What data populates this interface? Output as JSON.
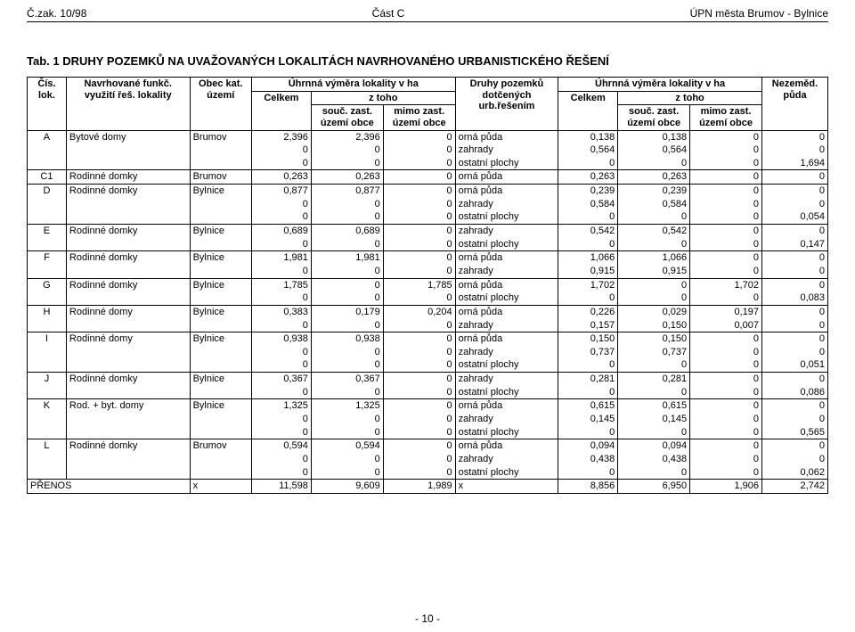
{
  "header": {
    "left": "Č.zak. 10/98",
    "center": "Část C",
    "right": "ÚPN města Brumov - Bylnice"
  },
  "title": "Tab. 1 DRUHY POZEMKŮ NA UVAŽOVANÝCH LOKALITÁCH NAVRHOVANÉHO URBANISTICKÉHO ŘEŠENÍ",
  "columns": {
    "col1": "Čís. lok.",
    "col2": "Navrhované funkč. využití řeš. lokality",
    "col3": "Obec kat. území",
    "group_left": "Úhrnná výměra lokality v ha",
    "celkem": "Celkem",
    "z_toho": "z toho",
    "souc": "souč. zast. území obce",
    "mimo": "mimo zast. území obce",
    "druhy": "Druhy pozemků dotčených urb.řešením",
    "group_right": "Úhrnná výměra lokality v ha",
    "nezemed": "Nezeměd. půda"
  },
  "rows": [
    {
      "id": "A",
      "name": "Bytové domy",
      "obec": "Brumov",
      "celkem": "2,396",
      "souc": "2,396",
      "mimo": "0",
      "druh": "orná půda",
      "c2": "0,138",
      "s2": "0,138",
      "m2": "0",
      "nz": "0",
      "firstOfGroup": true
    },
    {
      "id": "",
      "name": "",
      "obec": "",
      "celkem": "0",
      "souc": "0",
      "mimo": "0",
      "druh": "zahrady",
      "c2": "0,564",
      "s2": "0,564",
      "m2": "0",
      "nz": "0"
    },
    {
      "id": "",
      "name": "",
      "obec": "",
      "celkem": "0",
      "souc": "0",
      "mimo": "0",
      "druh": "ostatní plochy",
      "c2": "0",
      "s2": "0",
      "m2": "0",
      "nz": "1,694",
      "lastOfGroup": true
    },
    {
      "id": "C1",
      "name": "Rodinné domky",
      "obec": "Brumov",
      "celkem": "0,263",
      "souc": "0,263",
      "mimo": "0",
      "druh": "orná půda",
      "c2": "0,263",
      "s2": "0,263",
      "m2": "0",
      "nz": "0",
      "firstOfGroup": true,
      "lastOfGroup": true
    },
    {
      "id": "D",
      "name": "Rodinné domky",
      "obec": "Bylnice",
      "celkem": "0,877",
      "souc": "0,877",
      "mimo": "0",
      "druh": "orná půda",
      "c2": "0,239",
      "s2": "0,239",
      "m2": "0",
      "nz": "0",
      "firstOfGroup": true
    },
    {
      "id": "",
      "name": "",
      "obec": "",
      "celkem": "0",
      "souc": "0",
      "mimo": "0",
      "druh": "zahrady",
      "c2": "0,584",
      "s2": "0,584",
      "m2": "0",
      "nz": "0"
    },
    {
      "id": "",
      "name": "",
      "obec": "",
      "celkem": "0",
      "souc": "0",
      "mimo": "0",
      "druh": "ostatní plochy",
      "c2": "0",
      "s2": "0",
      "m2": "0",
      "nz": "0,054",
      "lastOfGroup": true
    },
    {
      "id": "E",
      "name": "Rodinné domky",
      "obec": "Bylnice",
      "celkem": "0,689",
      "souc": "0,689",
      "mimo": "0",
      "druh": "zahrady",
      "c2": "0,542",
      "s2": "0,542",
      "m2": "0",
      "nz": "0",
      "firstOfGroup": true
    },
    {
      "id": "",
      "name": "",
      "obec": "",
      "celkem": "0",
      "souc": "0",
      "mimo": "0",
      "druh": "ostatní plochy",
      "c2": "0",
      "s2": "0",
      "m2": "0",
      "nz": "0,147",
      "lastOfGroup": true
    },
    {
      "id": "F",
      "name": "Rodinné domky",
      "obec": "Bylnice",
      "celkem": "1,981",
      "souc": "1,981",
      "mimo": "0",
      "druh": "orná půda",
      "c2": "1,066",
      "s2": "1,066",
      "m2": "0",
      "nz": "0",
      "firstOfGroup": true
    },
    {
      "id": "",
      "name": "",
      "obec": "",
      "celkem": "0",
      "souc": "0",
      "mimo": "0",
      "druh": "zahrady",
      "c2": "0,915",
      "s2": "0,915",
      "m2": "0",
      "nz": "0",
      "lastOfGroup": true
    },
    {
      "id": "G",
      "name": "Rodinné domky",
      "obec": "Bylnice",
      "celkem": "1,785",
      "souc": "0",
      "mimo": "1,785",
      "druh": "orná půda",
      "c2": "1,702",
      "s2": "0",
      "m2": "1,702",
      "nz": "0",
      "firstOfGroup": true
    },
    {
      "id": "",
      "name": "",
      "obec": "",
      "celkem": "0",
      "souc": "0",
      "mimo": "0",
      "druh": "ostatní plochy",
      "c2": "0",
      "s2": "0",
      "m2": "0",
      "nz": "0,083",
      "lastOfGroup": true
    },
    {
      "id": "H",
      "name": "Rodinné domy",
      "obec": "Bylnice",
      "celkem": "0,383",
      "souc": "0,179",
      "mimo": "0,204",
      "druh": "orná půda",
      "c2": "0,226",
      "s2": "0,029",
      "m2": "0,197",
      "nz": "0",
      "firstOfGroup": true
    },
    {
      "id": "",
      "name": "",
      "obec": "",
      "celkem": "0",
      "souc": "0",
      "mimo": "0",
      "druh": "zahrady",
      "c2": "0,157",
      "s2": "0,150",
      "m2": "0,007",
      "nz": "0",
      "lastOfGroup": true
    },
    {
      "id": "I",
      "name": "Rodinné domy",
      "obec": "Bylnice",
      "celkem": "0,938",
      "souc": "0,938",
      "mimo": "0",
      "druh": "orná půda",
      "c2": "0,150",
      "s2": "0,150",
      "m2": "0",
      "nz": "0",
      "firstOfGroup": true
    },
    {
      "id": "",
      "name": "",
      "obec": "",
      "celkem": "0",
      "souc": "0",
      "mimo": "0",
      "druh": "zahrady",
      "c2": "0,737",
      "s2": "0,737",
      "m2": "0",
      "nz": "0"
    },
    {
      "id": "",
      "name": "",
      "obec": "",
      "celkem": "0",
      "souc": "0",
      "mimo": "0",
      "druh": "ostatní plochy",
      "c2": "0",
      "s2": "0",
      "m2": "0",
      "nz": "0,051",
      "lastOfGroup": true
    },
    {
      "id": "J",
      "name": "Rodinné domky",
      "obec": "Bylnice",
      "celkem": "0,367",
      "souc": "0,367",
      "mimo": "0",
      "druh": "zahrady",
      "c2": "0,281",
      "s2": "0,281",
      "m2": "0",
      "nz": "0",
      "firstOfGroup": true
    },
    {
      "id": "",
      "name": "",
      "obec": "",
      "celkem": "0",
      "souc": "0",
      "mimo": "0",
      "druh": "ostatní plochy",
      "c2": "0",
      "s2": "0",
      "m2": "0",
      "nz": "0,086",
      "lastOfGroup": true
    },
    {
      "id": "K",
      "name": "Rod. + byt. domy",
      "obec": "Bylnice",
      "celkem": "1,325",
      "souc": "1,325",
      "mimo": "0",
      "druh": "orná půda",
      "c2": "0,615",
      "s2": "0,615",
      "m2": "0",
      "nz": "0",
      "firstOfGroup": true
    },
    {
      "id": "",
      "name": "",
      "obec": "",
      "celkem": "0",
      "souc": "0",
      "mimo": "0",
      "druh": "zahrady",
      "c2": "0,145",
      "s2": "0,145",
      "m2": "0",
      "nz": "0"
    },
    {
      "id": "",
      "name": "",
      "obec": "",
      "celkem": "0",
      "souc": "0",
      "mimo": "0",
      "druh": "ostatní plochy",
      "c2": "0",
      "s2": "0",
      "m2": "0",
      "nz": "0,565",
      "lastOfGroup": true
    },
    {
      "id": "L",
      "name": "Rodinné domky",
      "obec": "Brumov",
      "celkem": "0,594",
      "souc": "0,594",
      "mimo": "0",
      "druh": "orná půda",
      "c2": "0,094",
      "s2": "0,094",
      "m2": "0",
      "nz": "0",
      "firstOfGroup": true
    },
    {
      "id": "",
      "name": "",
      "obec": "",
      "celkem": "0",
      "souc": "0",
      "mimo": "0",
      "druh": "zahrady",
      "c2": "0,438",
      "s2": "0,438",
      "m2": "0",
      "nz": "0"
    },
    {
      "id": "",
      "name": "",
      "obec": "",
      "celkem": "0",
      "souc": "0",
      "mimo": "0",
      "druh": "ostatní plochy",
      "c2": "0",
      "s2": "0",
      "m2": "0",
      "nz": "0,062",
      "lastOfGroup": true
    }
  ],
  "totals": {
    "label": "PŘENOS",
    "x1": "x",
    "celkem": "11,598",
    "souc": "9,609",
    "mimo": "1,989",
    "x2": "x",
    "c2": "8,856",
    "s2": "6,950",
    "m2": "1,906",
    "nz": "2,742"
  },
  "footer": "- 10 -",
  "style": {
    "widths": {
      "c1": "38px",
      "c2": "120px",
      "c3": "60px",
      "c4": "58px",
      "c5": "70px",
      "c6": "70px",
      "c7": "100px",
      "c8": "58px",
      "c9": "70px",
      "c10": "70px",
      "c11": "64px"
    }
  }
}
